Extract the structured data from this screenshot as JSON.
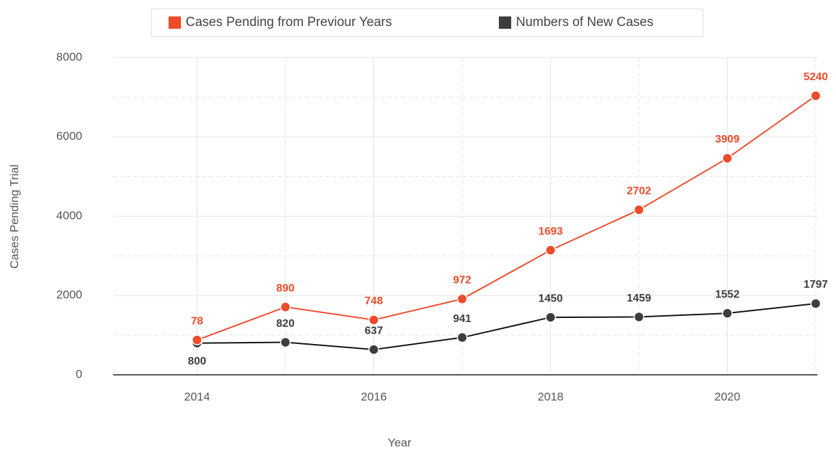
{
  "chart_data": {
    "type": "line",
    "stacked": true,
    "x": [
      2014,
      2015,
      2016,
      2017,
      2018,
      2019,
      2020,
      2021
    ],
    "series": [
      {
        "name": "Numbers of New Cases",
        "color": "#3d3d3d",
        "line_color": "#111111",
        "values": [
          800,
          820,
          637,
          941,
          1450,
          1459,
          1552,
          1797
        ]
      },
      {
        "name": "Cases Pending from Previour Years",
        "color": "#ee4b2b",
        "line_color": "#ee4b2b",
        "values": [
          78,
          890,
          748,
          972,
          1693,
          2702,
          3909,
          5240
        ]
      }
    ],
    "legend_order": [
      1,
      0
    ],
    "xlabel": "Year",
    "ylabel": "Cases Pending Trial",
    "xlim": [
      2013.05,
      2021.02
    ],
    "xticks": [
      2014,
      2016,
      2018,
      2020
    ],
    "xminor_ticks": [
      2015,
      2017,
      2019,
      2021
    ],
    "ylim": [
      0,
      8000
    ],
    "yticks": [
      0,
      2000,
      4000,
      6000,
      8000
    ],
    "yminor_ticks": [
      1000,
      3000,
      5000,
      7000
    ],
    "grid": true,
    "legend": "top"
  }
}
